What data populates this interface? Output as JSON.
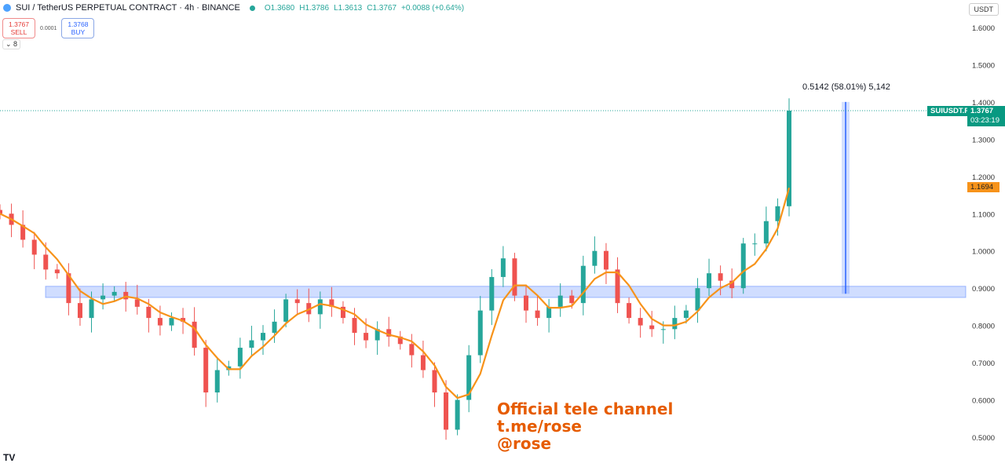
{
  "header": {
    "symbol": "SUI / TetherUS PERPETUAL CONTRACT · 4h · BINANCE",
    "open": "O1.3680",
    "high": "H1.3786",
    "low": "L1.3613",
    "close": "C1.3767",
    "change": "+0.0088 (+0.64%)"
  },
  "trade": {
    "sell_price": "1.3767",
    "sell_label": "SELL",
    "spread": "0.0001",
    "buy_price": "1.3768",
    "buy_label": "BUY"
  },
  "indicators_toggle": "8",
  "currency": "USDT",
  "price_tag": {
    "symbol": "SUIUSDT.P",
    "price": "1.3767",
    "countdown": "03:23:19"
  },
  "ma_tag": "1.1694",
  "measure_label": "0.5142 (58.01%) 5,142",
  "watermark": {
    "line1": "Official tele channel",
    "line2": "t.me/rose",
    "line3": "@rose"
  },
  "colors": {
    "up": "#26a69a",
    "down": "#ef5350",
    "ma": "#f7931a",
    "zone": "#2962ff",
    "watermark": "#e65c00"
  },
  "chart_data": {
    "type": "candlestick",
    "y_ticks": [
      "1.6000",
      "1.5000",
      "1.4000",
      "1.3000",
      "1.2000",
      "1.1000",
      "1.0000",
      "0.9000",
      "0.8000",
      "0.7000",
      "0.6000",
      "0.5000"
    ],
    "ylim": [
      0.5,
      1.6
    ],
    "closes": [
      1.1,
      1.07,
      1.03,
      0.99,
      0.95,
      0.94,
      0.86,
      0.82,
      0.87,
      0.88,
      0.89,
      0.87,
      0.85,
      0.82,
      0.8,
      0.82,
      0.81,
      0.74,
      0.62,
      0.68,
      0.69,
      0.74,
      0.76,
      0.78,
      0.81,
      0.87,
      0.86,
      0.83,
      0.87,
      0.85,
      0.82,
      0.78,
      0.76,
      0.79,
      0.77,
      0.75,
      0.72,
      0.68,
      0.62,
      0.52,
      0.6,
      0.72,
      0.84,
      0.93,
      0.98,
      0.88,
      0.84,
      0.82,
      0.85,
      0.88,
      0.86,
      0.96,
      1.0,
      0.95,
      0.86,
      0.82,
      0.8,
      0.79,
      0.79,
      0.82,
      0.84,
      0.9,
      0.94,
      0.92,
      0.9,
      1.02,
      1.02,
      1.08,
      1.12,
      1.3767
    ],
    "support_zone": [
      0.875,
      0.905
    ],
    "measure": {
      "from": 0.885,
      "to": 1.4
    },
    "last_price": 1.3767,
    "ma_last": 1.1694
  }
}
